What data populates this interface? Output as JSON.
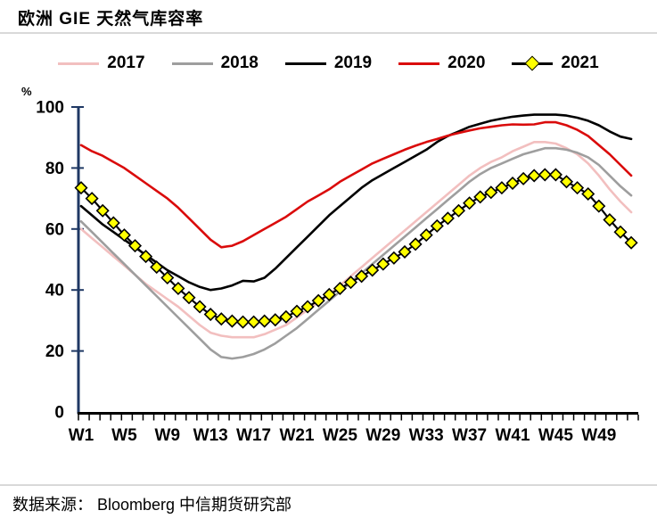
{
  "title": "欧洲 GIE 天然气库容率",
  "source": "数据来源： Bloomberg 中信期货研究部",
  "chart_data": {
    "type": "line",
    "title": "欧洲 GIE 天然气库容率",
    "xlabel": "",
    "ylabel": "%",
    "ylim": [
      0,
      100
    ],
    "grid": false,
    "legend_position": "top",
    "axis_color": "#1f3864",
    "y_ticks": [
      0,
      20,
      40,
      60,
      80,
      100
    ],
    "x_ticklabels": [
      "W1",
      "W5",
      "W9",
      "W13",
      "W17",
      "W21",
      "W25",
      "W29",
      "W33",
      "W37",
      "W41",
      "W45",
      "W49"
    ],
    "x_unit": "week",
    "weeks": 52,
    "series": [
      {
        "name": "2017",
        "color": "#f2bfbf",
        "marker": null,
        "values": [
          60,
          57,
          54,
          51,
          48,
          45,
          42,
          39.5,
          37,
          34.5,
          31.5,
          28.5,
          26,
          25,
          24.5,
          24.5,
          24.5,
          25.5,
          27,
          28.5,
          31,
          33.5,
          36,
          38.5,
          41.5,
          44.5,
          47.5,
          50.5,
          53.5,
          56.5,
          59.5,
          62.5,
          65.5,
          68.5,
          71.5,
          74.5,
          77.5,
          80,
          82,
          83.5,
          85.5,
          87,
          88.5,
          88.5,
          88,
          86.5,
          84.5,
          81.5,
          77.5,
          73,
          69,
          65.5
        ]
      },
      {
        "name": "2018",
        "color": "#9e9e9e",
        "marker": null,
        "values": [
          62.5,
          59,
          55.5,
          52,
          48.5,
          45,
          41.5,
          38,
          34.5,
          31,
          27.5,
          24,
          20.5,
          18,
          17.5,
          18,
          19,
          20.5,
          22.5,
          25,
          27.5,
          30.5,
          33.5,
          36.5,
          39.5,
          42.5,
          45.5,
          48.5,
          51.5,
          54.5,
          57.5,
          60.5,
          63.5,
          66.5,
          69.5,
          72.5,
          75.5,
          78,
          80,
          81.5,
          83,
          84.5,
          85.5,
          86.5,
          86.5,
          86,
          85,
          83.5,
          81,
          77.5,
          74,
          71
        ]
      },
      {
        "name": "2019",
        "color": "#000000",
        "marker": null,
        "values": [
          67.5,
          64.5,
          61.5,
          59,
          56.5,
          54,
          51.5,
          49,
          46.5,
          44.5,
          42.5,
          41,
          40,
          40.5,
          41.5,
          43,
          42.8,
          44,
          47,
          50.5,
          54,
          57.5,
          61,
          64.5,
          67.5,
          70.5,
          73.5,
          76,
          78,
          80,
          82,
          84,
          86,
          88.5,
          90.5,
          92,
          93.5,
          94.5,
          95.5,
          96.2,
          96.8,
          97.2,
          97.5,
          97.5,
          97.5,
          97.2,
          96.5,
          95.5,
          94,
          92,
          90.3,
          89.5
        ]
      },
      {
        "name": "2020",
        "color": "#da0b0b",
        "marker": null,
        "values": [
          87.5,
          85.5,
          84,
          82,
          80,
          77.5,
          75,
          72.5,
          70,
          67,
          63.5,
          60,
          56.5,
          54,
          54.5,
          56,
          58,
          60,
          62,
          64,
          66.5,
          69,
          71,
          73,
          75.5,
          77.5,
          79.5,
          81.5,
          83,
          84.5,
          86,
          87.3,
          88.5,
          89.5,
          90.6,
          91.5,
          92.3,
          93,
          93.5,
          94,
          94.3,
          94.2,
          94.3,
          95,
          95,
          94,
          92.5,
          90.5,
          87.5,
          84.5,
          81,
          77.5
        ]
      },
      {
        "name": "2021",
        "color": "#000000",
        "marker": "diamond",
        "marker_fill": "#ffff00",
        "values": [
          73.5,
          70,
          66,
          62,
          58,
          54.5,
          51,
          47.5,
          44,
          40.5,
          37.5,
          34.5,
          32,
          30.5,
          29.8,
          29.5,
          29.5,
          29.8,
          30.2,
          31.2,
          33,
          34.5,
          36.5,
          38.5,
          40.5,
          42.5,
          44.5,
          46.5,
          48.5,
          50.5,
          52.5,
          55,
          58,
          61,
          63.5,
          66,
          68.5,
          70.5,
          72,
          73.5,
          75,
          76.5,
          77.5,
          77.8,
          77.8,
          75.5,
          73.5,
          71.5,
          67.5,
          63,
          59,
          55.5
        ]
      }
    ]
  }
}
